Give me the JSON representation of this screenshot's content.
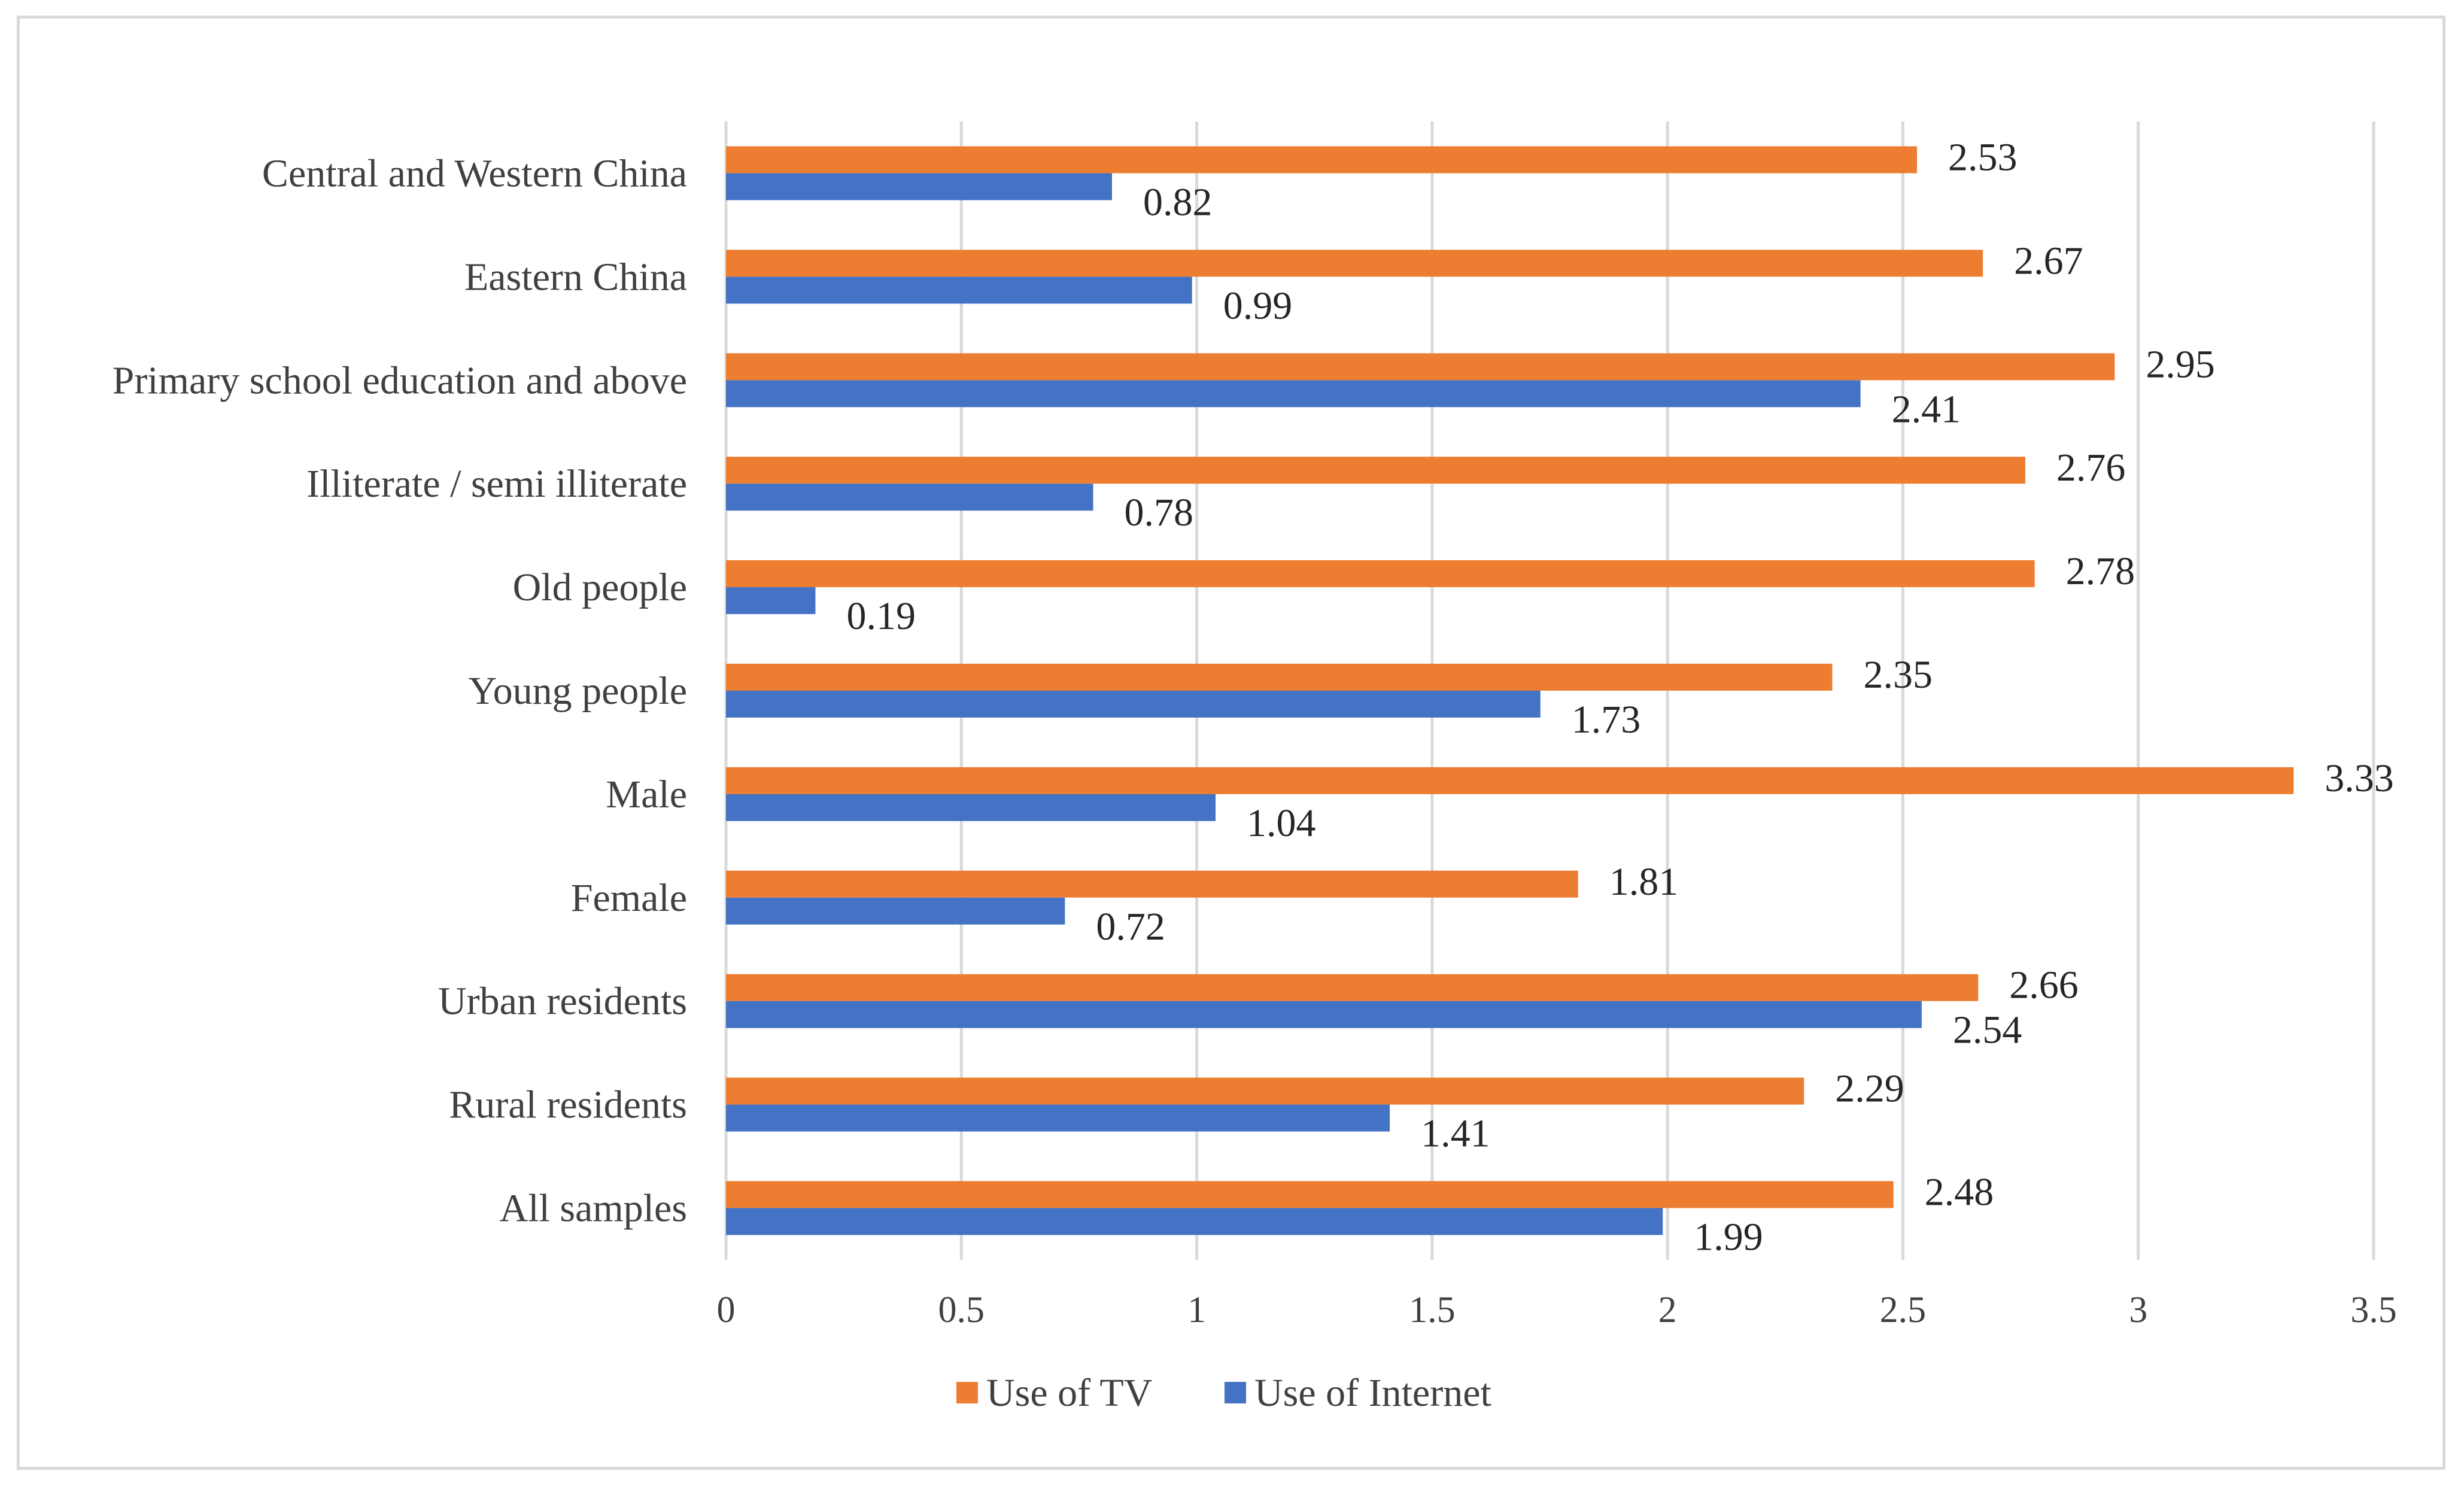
{
  "chart_data": {
    "type": "bar",
    "orientation": "horizontal",
    "title": "",
    "xlabel": "",
    "ylabel": "",
    "xlim": [
      0,
      3.5
    ],
    "xticks": [
      0,
      0.5,
      1,
      1.5,
      2,
      2.5,
      3,
      3.5
    ],
    "xtick_labels": [
      "0",
      "0.5",
      "1",
      "1.5",
      "2",
      "2.5",
      "3",
      "3.5"
    ],
    "grid": "vertical",
    "legend_position": "bottom-center",
    "categories": [
      "All samples",
      "Rural residents",
      "Urban residents",
      "Female",
      "Male",
      "Young people",
      "Old people",
      "Illiterate / semi illiterate",
      "Primary school education and above",
      "Eastern China",
      "Central and Western China"
    ],
    "series": [
      {
        "name": "Use of Internet",
        "color": "#4472c4",
        "values": [
          1.99,
          1.41,
          2.54,
          0.72,
          1.04,
          1.73,
          0.19,
          0.78,
          2.41,
          0.99,
          0.82
        ],
        "labels": [
          "1.99",
          "1.41",
          "2.54",
          "0.72",
          "1.04",
          "1.73",
          "0.19",
          "0.78",
          "2.41",
          "0.99",
          "0.82"
        ]
      },
      {
        "name": "Use of TV",
        "color": "#ed7d31",
        "values": [
          2.48,
          2.29,
          2.66,
          1.81,
          3.33,
          2.35,
          2.78,
          2.76,
          2.95,
          2.67,
          2.53
        ],
        "labels": [
          "2.48",
          "2.29",
          "2.66",
          "1.81",
          "3.33",
          "2.35",
          "2.78",
          "2.76",
          "2.95",
          "2.67",
          "2.53"
        ]
      }
    ],
    "legend": [
      {
        "name": "Use of TV",
        "color": "#ed7d31"
      },
      {
        "name": "Use of Internet",
        "color": "#4472c4"
      }
    ],
    "gridline_color": "#d9d9d9",
    "text_color": "#404040"
  }
}
